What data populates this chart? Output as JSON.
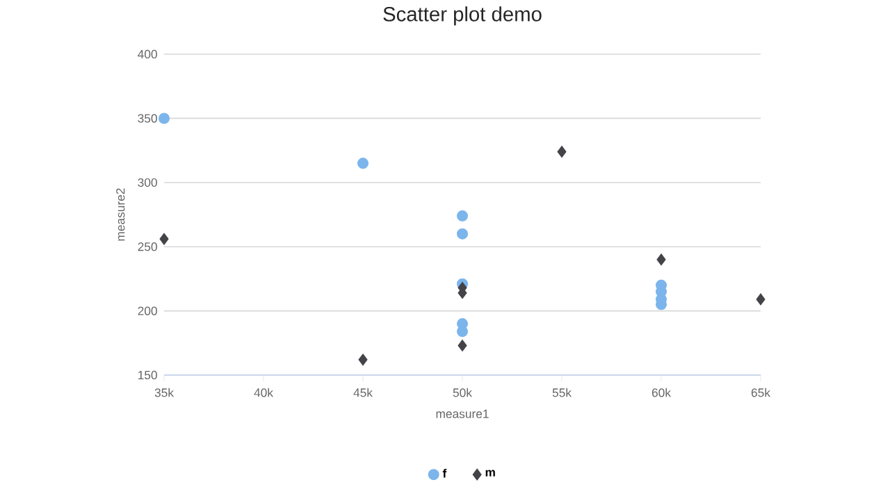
{
  "chart_data": {
    "type": "scatter",
    "title": "Scatter plot demo",
    "xlabel": "measure1",
    "ylabel": "measure2",
    "xlim": [
      35000,
      65000
    ],
    "xticks": [
      {
        "value": 35000,
        "label": "35k"
      },
      {
        "value": 40000,
        "label": "40k"
      },
      {
        "value": 45000,
        "label": "45k"
      },
      {
        "value": 50000,
        "label": "50k"
      },
      {
        "value": 55000,
        "label": "55k"
      },
      {
        "value": 60000,
        "label": "60k"
      },
      {
        "value": 65000,
        "label": "65k"
      }
    ],
    "ylim": [
      150,
      400
    ],
    "yticks": [
      150,
      200,
      250,
      300,
      350,
      400
    ],
    "grid": "y",
    "legend": "bottom",
    "series": [
      {
        "name": "f",
        "color": "#7cb5ec",
        "marker": "circle",
        "x": [
          35000,
          45000,
          50000,
          50000,
          50000,
          50000,
          50000,
          60000,
          60000,
          60000,
          60000
        ],
        "values": [
          350,
          315,
          274,
          260,
          221,
          190,
          184,
          220,
          215,
          209,
          205
        ]
      },
      {
        "name": "m",
        "color": "#434348",
        "marker": "diamond",
        "x": [
          35000,
          45000,
          50000,
          50000,
          50000,
          55000,
          60000,
          65000
        ],
        "values": [
          256,
          162,
          218,
          214,
          173,
          324,
          240,
          209
        ]
      }
    ]
  }
}
